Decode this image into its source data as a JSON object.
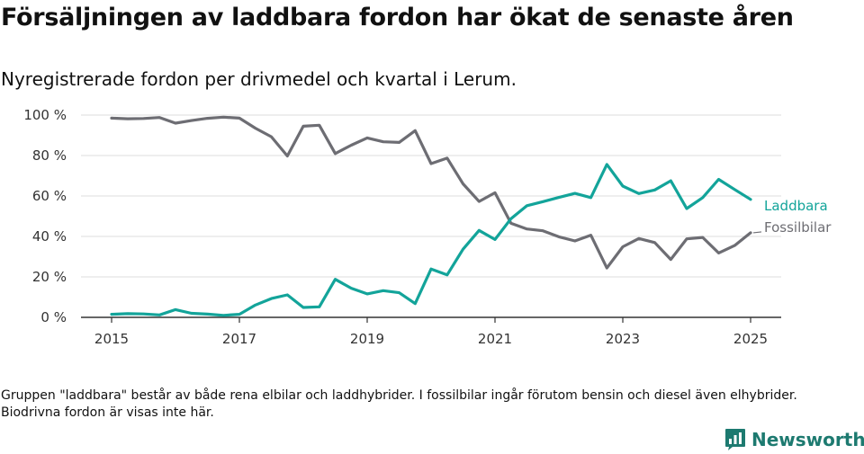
{
  "title": "Försäljningen av laddbara fordon har ökat de senaste åren",
  "subtitle": "Nyregistrerade fordon per drivmedel och kvartal i Lerum.",
  "footnote": "Gruppen \"laddbara\" består av både rena elbilar och laddhybrider. I fossilbilar ingår förutom bensin och diesel även elhybrider. Biodrivna fordon är visas inte här.",
  "brand": "Newsworthy",
  "colors": {
    "fossil": "#6d6d73",
    "laddbara": "#13a49a",
    "brand": "#1d7a70"
  },
  "chart_data": {
    "type": "line",
    "x": [
      2015.0,
      2015.25,
      2015.5,
      2015.75,
      2016.0,
      2016.25,
      2016.5,
      2016.75,
      2017.0,
      2017.25,
      2017.5,
      2017.75,
      2018.0,
      2018.25,
      2018.5,
      2018.75,
      2019.0,
      2019.25,
      2019.5,
      2019.75,
      2020.0,
      2020.25,
      2020.5,
      2020.75,
      2021.0,
      2021.25,
      2021.5,
      2021.75,
      2022.0,
      2022.25,
      2022.5,
      2022.75,
      2023.0,
      2023.25,
      2023.5,
      2023.75,
      2024.0,
      2024.25,
      2024.5,
      2024.75,
      2025.0
    ],
    "series": [
      {
        "name": "Fossilbilar",
        "color": "#6d6d73",
        "values": [
          98.5,
          98.2,
          98.3,
          98.8,
          96,
          97.3,
          98.4,
          99,
          98.5,
          93.5,
          89.3,
          79.8,
          94.5,
          95,
          81,
          85.1,
          88.7,
          86.8,
          86.5,
          92.3,
          76,
          78.7,
          66,
          57.3,
          61.6,
          46.5,
          43.7,
          42.8,
          39.8,
          37.8,
          40.6,
          24.4,
          34.9,
          39,
          37,
          28.6,
          38.8,
          39.5,
          31.8,
          35.5,
          41.8
        ]
      },
      {
        "name": "Laddbara",
        "color": "#13a49a",
        "values": [
          1.5,
          1.8,
          1.7,
          1.2,
          3.8,
          2,
          1.6,
          1,
          1.5,
          6.1,
          9.3,
          11.1,
          4.9,
          5.2,
          18.8,
          14.4,
          11.6,
          13.2,
          12.2,
          6.8,
          23.9,
          21,
          33.7,
          43,
          38.5,
          48.8,
          55.2,
          57.2,
          59.3,
          61.3,
          59.2,
          75.6,
          64.9,
          61.2,
          63,
          67.5,
          53.8,
          59.2,
          68.2,
          63.2,
          58.3
        ]
      }
    ],
    "xticks": [
      "2015",
      "2017",
      "2019",
      "2021",
      "2023",
      "2025"
    ],
    "yticks": [
      "0 %",
      "20 %",
      "40 %",
      "60 %",
      "80 %",
      "100 %"
    ],
    "xlim": [
      2015,
      2025
    ],
    "ylim": [
      0,
      100
    ],
    "grid": "horizontal"
  }
}
